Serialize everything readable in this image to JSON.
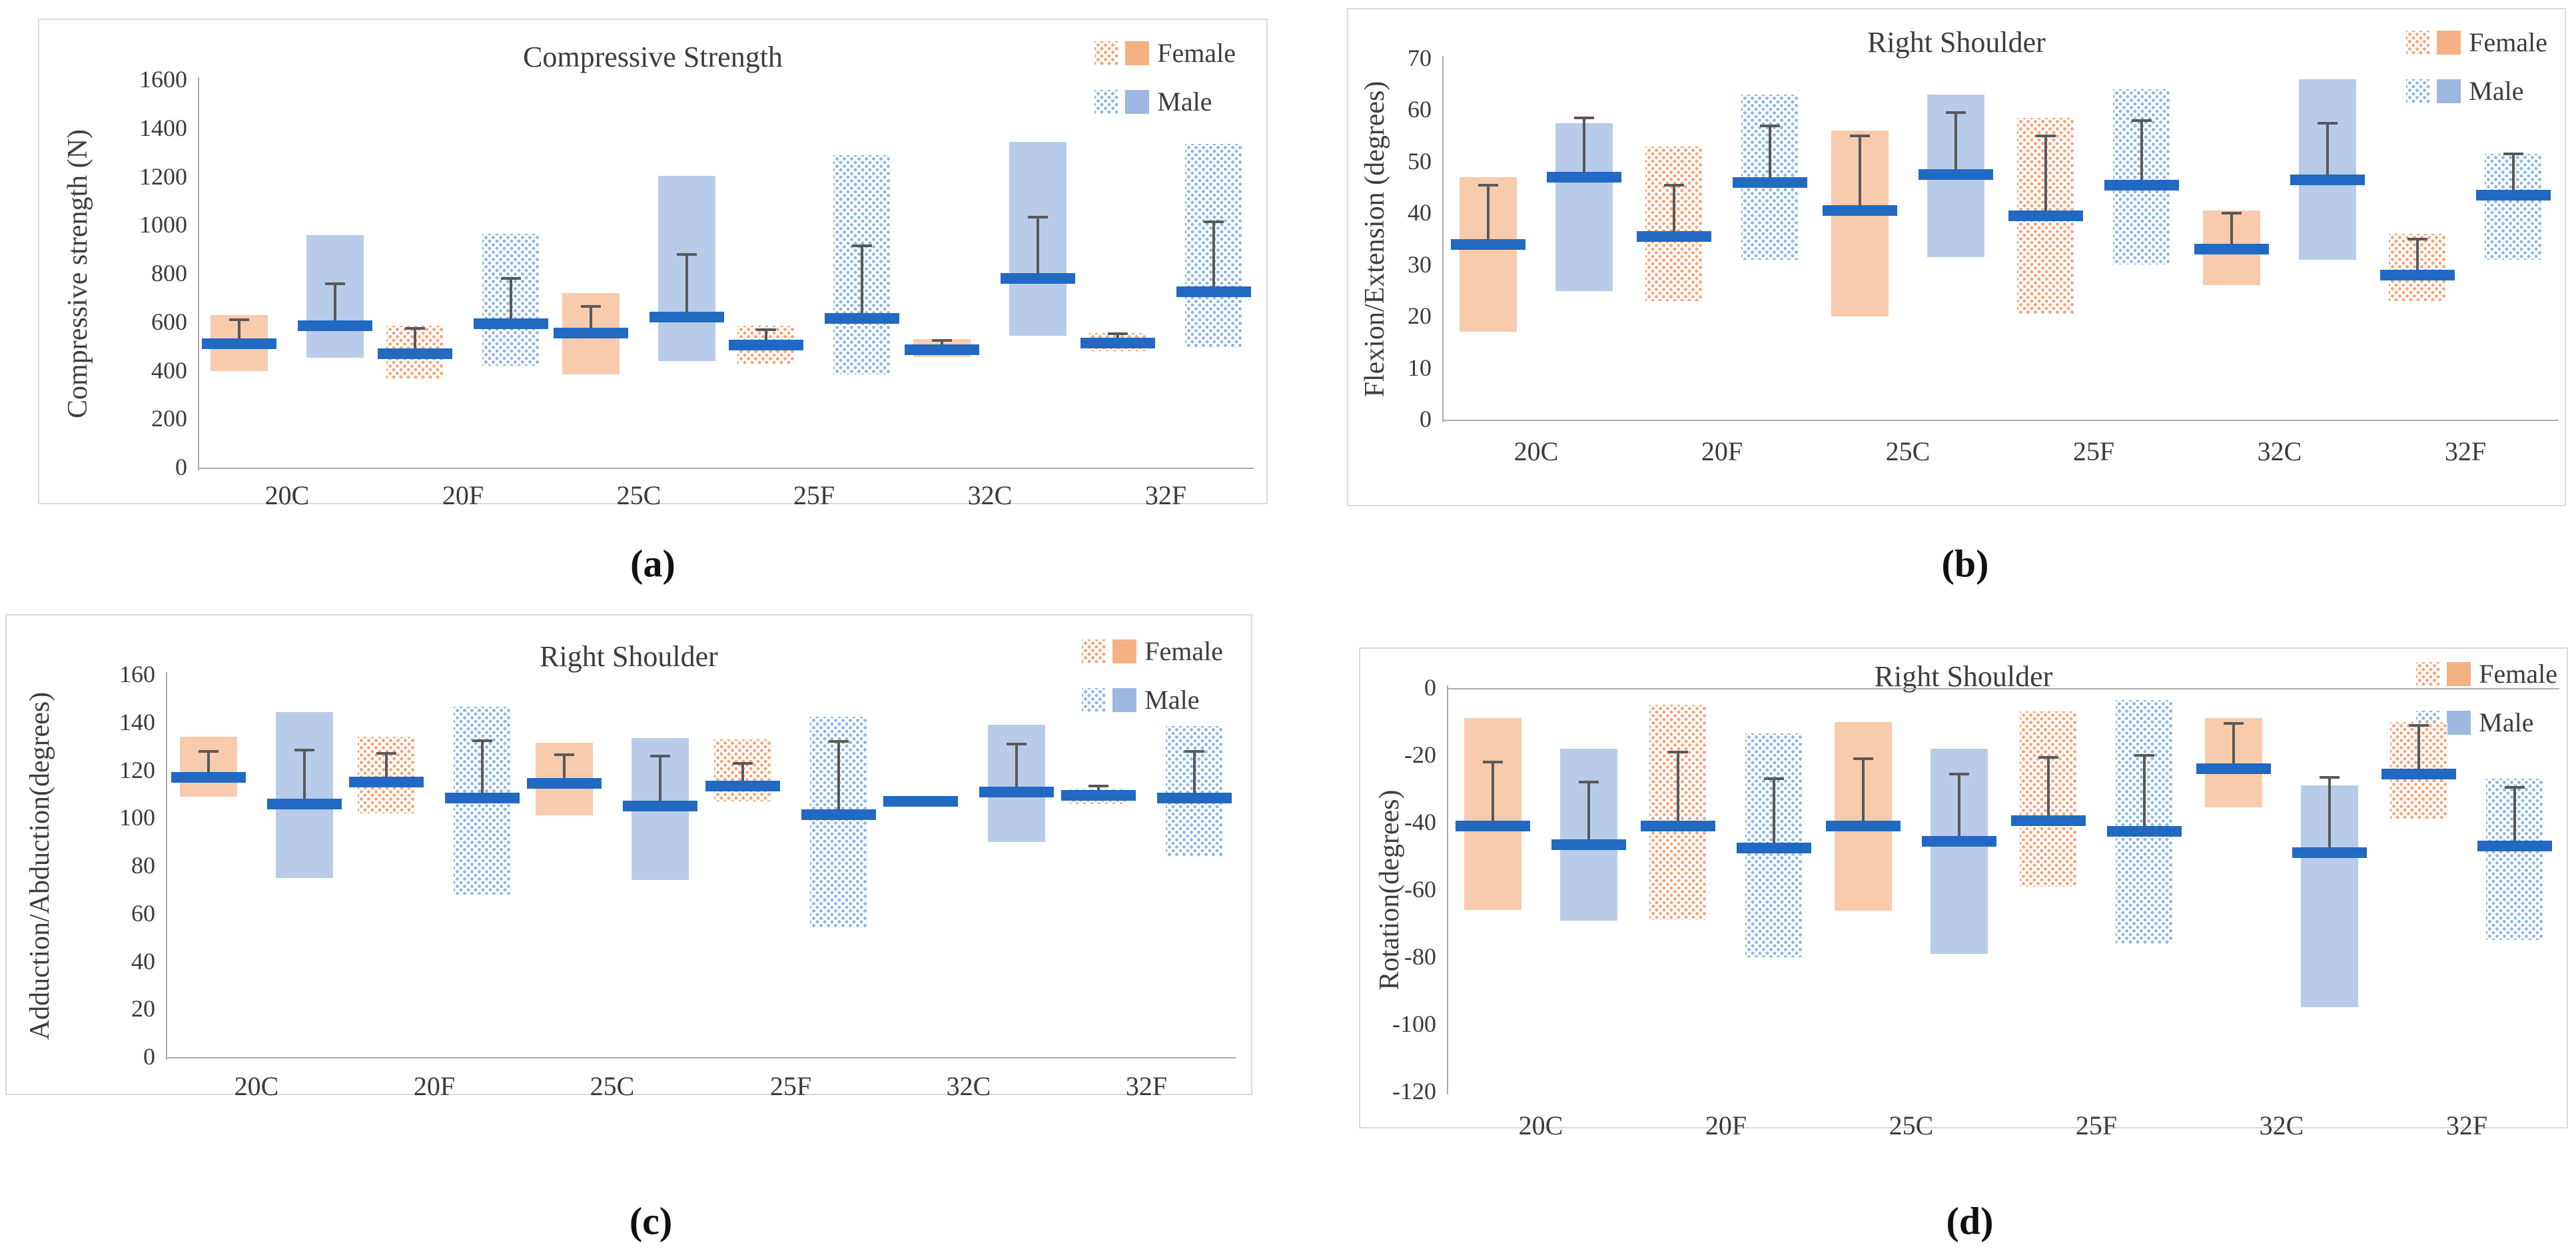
{
  "colors": {
    "female_bar_solid": "#f8cbad",
    "female_dot": "#f2a97e",
    "female_legend_solid": "#f4b183",
    "male_bar_solid": "#b8ccea",
    "male_dot": "#92b9e2",
    "male_legend_solid": "#9db8e0",
    "mean_dash": "#2169c1",
    "error_bar": "#595959",
    "axis_line": "#ababab",
    "text": "#3a3a3a",
    "panel_border": "#d9d9d9"
  },
  "chart_data": [
    {
      "type": "bar",
      "subtype": "floating-bar-with-mean-and-error",
      "panel": "a",
      "caption": "(a)",
      "title": "Compressive Strength",
      "ylabel": "Compressive strength (N)",
      "xlabel": "",
      "ylim": [
        0,
        1600
      ],
      "yticks": [
        1600,
        1400,
        1200,
        1000,
        800,
        600,
        400,
        200,
        0
      ],
      "categories": [
        "20C",
        "20F",
        "25C",
        "25F",
        "32C",
        "32F"
      ],
      "fill_by_category": [
        "solid",
        "dotted",
        "solid",
        "dotted",
        "solid",
        "dotted"
      ],
      "legend": [
        "Female",
        "Male"
      ],
      "legend_position": "top-right",
      "grid": false,
      "series": [
        {
          "name": "Female",
          "key": "female",
          "bars": [
            {
              "cat": "20C",
              "low": 400,
              "high": 630,
              "mean": 510,
              "err_top": 610
            },
            {
              "cat": "20F",
              "low": 365,
              "high": 585,
              "mean": 470,
              "err_top": 575
            },
            {
              "cat": "25C",
              "low": 385,
              "high": 720,
              "mean": 555,
              "err_top": 665
            },
            {
              "cat": "25F",
              "low": 425,
              "high": 585,
              "mean": 505,
              "err_top": 570
            },
            {
              "cat": "32C",
              "low": 455,
              "high": 530,
              "mean": 487,
              "err_top": 525
            },
            {
              "cat": "32F",
              "low": 480,
              "high": 555,
              "mean": 515,
              "err_top": 552
            }
          ]
        },
        {
          "name": "Male",
          "key": "male",
          "bars": [
            {
              "cat": "20C",
              "low": 455,
              "high": 960,
              "mean": 585,
              "err_top": 760
            },
            {
              "cat": "20F",
              "low": 420,
              "high": 965,
              "mean": 595,
              "err_top": 780
            },
            {
              "cat": "25C",
              "low": 440,
              "high": 1205,
              "mean": 620,
              "err_top": 880
            },
            {
              "cat": "25F",
              "low": 385,
              "high": 1290,
              "mean": 615,
              "err_top": 915
            },
            {
              "cat": "32C",
              "low": 545,
              "high": 1345,
              "mean": 780,
              "err_top": 1035
            },
            {
              "cat": "32F",
              "low": 495,
              "high": 1335,
              "mean": 725,
              "err_top": 1015
            }
          ]
        }
      ]
    },
    {
      "type": "bar",
      "subtype": "floating-bar-with-mean-and-error",
      "panel": "b",
      "caption": "(b)",
      "title": "Right Shoulder",
      "ylabel": "Flexion/Extension (degrees)",
      "xlabel": "",
      "ylim": [
        0,
        70
      ],
      "yticks": [
        70,
        60,
        50,
        40,
        30,
        20,
        10,
        0
      ],
      "categories": [
        "20C",
        "20F",
        "25C",
        "25F",
        "32C",
        "32F"
      ],
      "fill_by_category": [
        "solid",
        "dotted",
        "solid",
        "dotted",
        "solid",
        "dotted"
      ],
      "legend": [
        "Female",
        "Male"
      ],
      "legend_position": "top-right",
      "grid": false,
      "series": [
        {
          "name": "Female",
          "key": "female",
          "bars": [
            {
              "cat": "20C",
              "low": 17,
              "high": 47,
              "mean": 34,
              "err_top": 45.5
            },
            {
              "cat": "20F",
              "low": 23,
              "high": 53,
              "mean": 35.5,
              "err_top": 45.5
            },
            {
              "cat": "25C",
              "low": 20,
              "high": 56,
              "mean": 40.5,
              "err_top": 55
            },
            {
              "cat": "25F",
              "low": 20.5,
              "high": 58.5,
              "mean": 39.5,
              "err_top": 55
            },
            {
              "cat": "32C",
              "low": 26,
              "high": 40.5,
              "mean": 33,
              "err_top": 40
            },
            {
              "cat": "32F",
              "low": 23,
              "high": 36,
              "mean": 28,
              "err_top": 35
            }
          ]
        },
        {
          "name": "Male",
          "key": "male",
          "bars": [
            {
              "cat": "20C",
              "low": 25,
              "high": 57.5,
              "mean": 47,
              "err_top": 58.5
            },
            {
              "cat": "20F",
              "low": 31,
              "high": 63,
              "mean": 46,
              "err_top": 57
            },
            {
              "cat": "25C",
              "low": 31.5,
              "high": 63,
              "mean": 47.5,
              "err_top": 59.5
            },
            {
              "cat": "25F",
              "low": 30,
              "high": 64,
              "mean": 45.5,
              "err_top": 58
            },
            {
              "cat": "32C",
              "low": 31,
              "high": 66,
              "mean": 46.5,
              "err_top": 57.5
            },
            {
              "cat": "32F",
              "low": 31,
              "high": 51.5,
              "mean": 43.5,
              "err_top": 51.5
            }
          ]
        }
      ]
    },
    {
      "type": "bar",
      "subtype": "floating-bar-with-mean-and-error",
      "panel": "c",
      "caption": "(c)",
      "title": "Right Shoulder",
      "ylabel": "Adduction/Abduction(degrees)",
      "xlabel": "",
      "ylim": [
        0,
        160
      ],
      "yticks": [
        160,
        140,
        120,
        100,
        80,
        60,
        40,
        20,
        0
      ],
      "categories": [
        "20C",
        "20F",
        "25C",
        "25F",
        "32C",
        "32F"
      ],
      "fill_by_category": [
        "solid",
        "dotted",
        "solid",
        "dotted",
        "solid",
        "dotted"
      ],
      "legend": [
        "Female",
        "Male"
      ],
      "legend_position": "top-right",
      "grid": false,
      "series": [
        {
          "name": "Female",
          "key": "female",
          "bars": [
            {
              "cat": "20C",
              "low": 109,
              "high": 134,
              "mean": 117,
              "err_top": 128
            },
            {
              "cat": "20F",
              "low": 102,
              "high": 134,
              "mean": 115,
              "err_top": 127
            },
            {
              "cat": "25C",
              "low": 101,
              "high": 131.5,
              "mean": 114.5,
              "err_top": 126.5
            },
            {
              "cat": "25F",
              "low": 107,
              "high": 133,
              "mean": 113.5,
              "err_top": 123
            },
            {
              "cat": "32C",
              "low": 107,
              "high": 107,
              "mean": 107,
              "err_top": null
            },
            {
              "cat": "32F",
              "low": 106,
              "high": 112,
              "mean": 109.5,
              "err_top": 113.5
            }
          ]
        },
        {
          "name": "Male",
          "key": "male",
          "bars": [
            {
              "cat": "20C",
              "low": 75,
              "high": 144.5,
              "mean": 106,
              "err_top": 128.5
            },
            {
              "cat": "20F",
              "low": 68,
              "high": 146.5,
              "mean": 108.5,
              "err_top": 132.5
            },
            {
              "cat": "25C",
              "low": 74,
              "high": 133.5,
              "mean": 105,
              "err_top": 126
            },
            {
              "cat": "25F",
              "low": 54,
              "high": 142.5,
              "mean": 101.5,
              "err_top": 132
            },
            {
              "cat": "32C",
              "low": 90,
              "high": 139,
              "mean": 111,
              "err_top": 131
            },
            {
              "cat": "32F",
              "low": 84,
              "high": 138.5,
              "mean": 108.5,
              "err_top": 128
            }
          ]
        }
      ]
    },
    {
      "type": "bar",
      "subtype": "floating-bar-with-mean-and-error",
      "panel": "d",
      "caption": "(d)",
      "title": "Right Shoulder",
      "ylabel": "Rotation(degrees)",
      "xlabel": "",
      "ylim": [
        -120,
        0
      ],
      "yticks": [
        0,
        -20,
        -40,
        -60,
        -80,
        -100,
        -120
      ],
      "categories": [
        "20C",
        "20F",
        "25C",
        "25F",
        "32C",
        "32F"
      ],
      "fill_by_category": [
        "solid",
        "dotted",
        "solid",
        "dotted",
        "solid",
        "dotted"
      ],
      "legend": [
        "Female",
        "Male"
      ],
      "legend_position": "top-right",
      "grid": false,
      "series": [
        {
          "name": "Female",
          "key": "female",
          "bars": [
            {
              "cat": "20C",
              "low": -66,
              "high": -9,
              "mean": -41,
              "err_top": -22
            },
            {
              "cat": "20F",
              "low": -69,
              "high": -5,
              "mean": -41,
              "err_top": -19
            },
            {
              "cat": "25C",
              "low": -66,
              "high": -10,
              "mean": -41,
              "err_top": -21
            },
            {
              "cat": "25F",
              "low": -59,
              "high": -7,
              "mean": -39.5,
              "err_top": -20.5
            },
            {
              "cat": "32C",
              "low": -35.5,
              "high": -9,
              "mean": -24,
              "err_top": -10.5
            },
            {
              "cat": "32F",
              "low": -39,
              "high": -10,
              "mean": -25.5,
              "err_top": -11
            }
          ]
        },
        {
          "name": "Male",
          "key": "male",
          "bars": [
            {
              "cat": "20C",
              "low": -69,
              "high": -18,
              "mean": -46.5,
              "err_top": -28
            },
            {
              "cat": "20F",
              "low": -80,
              "high": -13.5,
              "mean": -47.5,
              "err_top": -27
            },
            {
              "cat": "25C",
              "low": -79,
              "high": -18,
              "mean": -45.5,
              "err_top": -25.5
            },
            {
              "cat": "25F",
              "low": -76,
              "high": -3.5,
              "mean": -42.5,
              "err_top": -20
            },
            {
              "cat": "32C",
              "low": -95,
              "high": -29,
              "mean": -49,
              "err_top": -26.5
            },
            {
              "cat": "32F",
              "low": -75,
              "high": -27,
              "mean": -47,
              "err_top": -29.5
            }
          ]
        }
      ]
    }
  ]
}
